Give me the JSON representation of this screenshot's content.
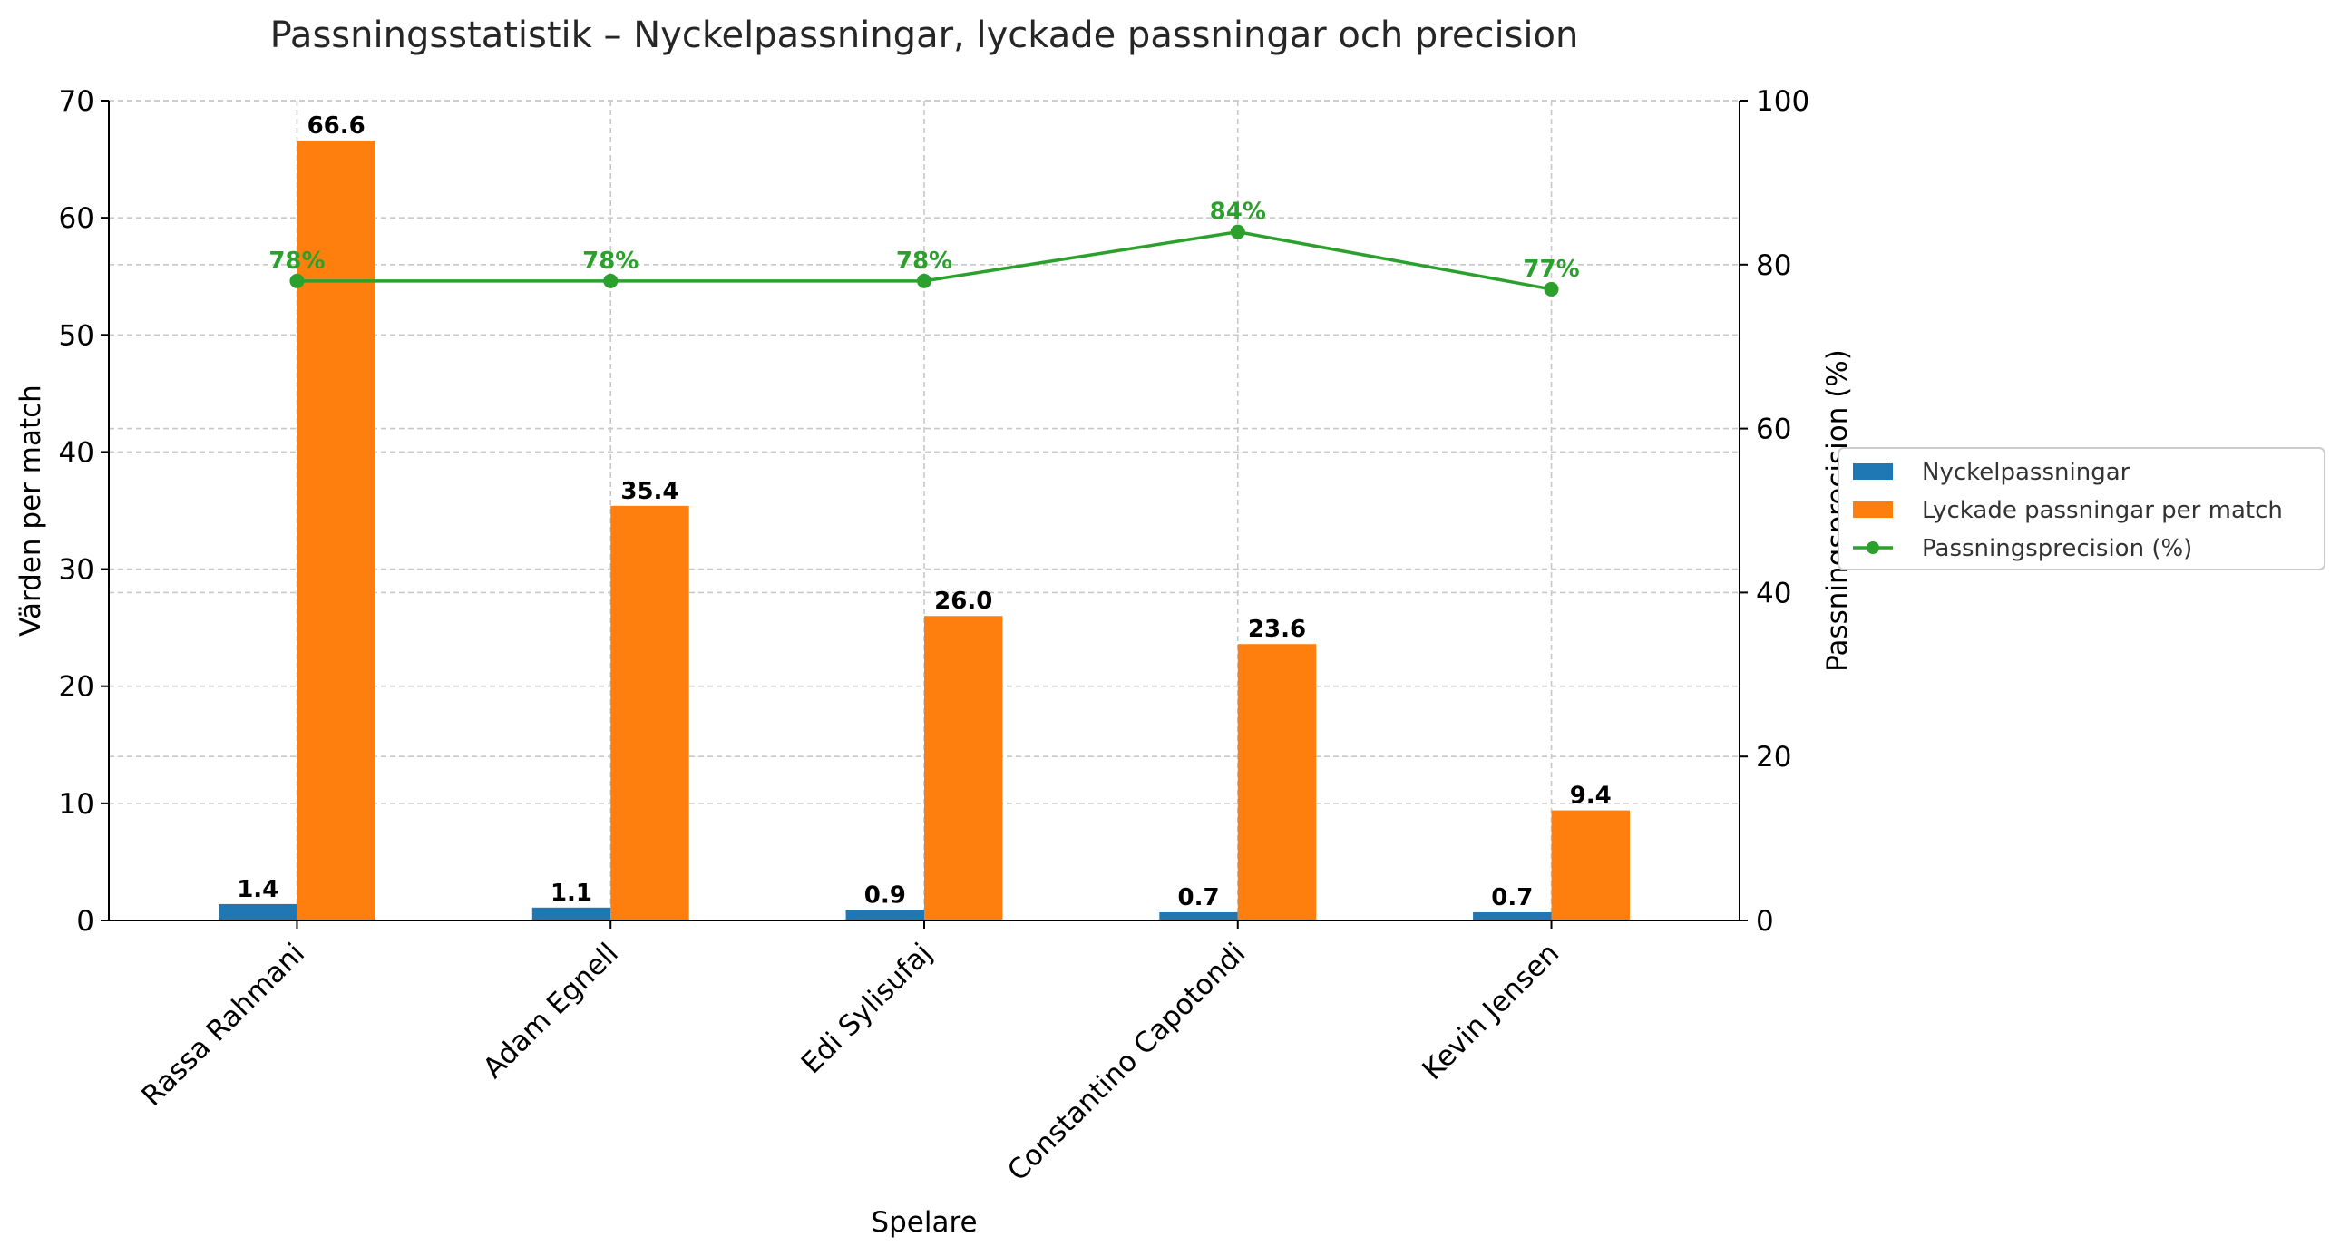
{
  "chart_data": {
    "type": "bar",
    "title": "Passningsstatistik – Nyckelpassningar, lyckade passningar och precision",
    "xlabel": "Spelare",
    "ylabel": "Värden per match",
    "y2label": "Passningsprecision (%)",
    "categories": [
      "Rassa Rahmani",
      "Adam Egnell",
      "Edi Sylisufaj",
      "Constantino Capotondi",
      "Kevin Jensen"
    ],
    "ylim": [
      0,
      70
    ],
    "y2lim": [
      0,
      100
    ],
    "yticks": [
      0,
      10,
      20,
      30,
      40,
      50,
      60,
      70
    ],
    "y2ticks": [
      0,
      20,
      40,
      60,
      80,
      100
    ],
    "grid": true,
    "legend_position": "right",
    "series": [
      {
        "name": "Nyckelpassningar",
        "kind": "bar",
        "axis": "left",
        "color": "#1f77b4",
        "values": [
          1.4,
          1.1,
          0.9,
          0.7,
          0.7
        ],
        "labels": [
          "1.4",
          "1.1",
          "0.9",
          "0.7",
          "0.7"
        ]
      },
      {
        "name": "Lyckade passningar per match",
        "kind": "bar",
        "axis": "left",
        "color": "#ff7f0e",
        "values": [
          66.6,
          35.4,
          26.0,
          23.6,
          9.4
        ],
        "labels": [
          "66.6",
          "35.4",
          "26.0",
          "23.6",
          "9.4"
        ]
      },
      {
        "name": "Passningsprecision (%)",
        "kind": "line",
        "axis": "right",
        "color": "#2ca02c",
        "values": [
          78,
          78,
          78,
          84,
          77
        ],
        "labels": [
          "78%",
          "78%",
          "78%",
          "84%",
          "77%"
        ]
      }
    ]
  }
}
